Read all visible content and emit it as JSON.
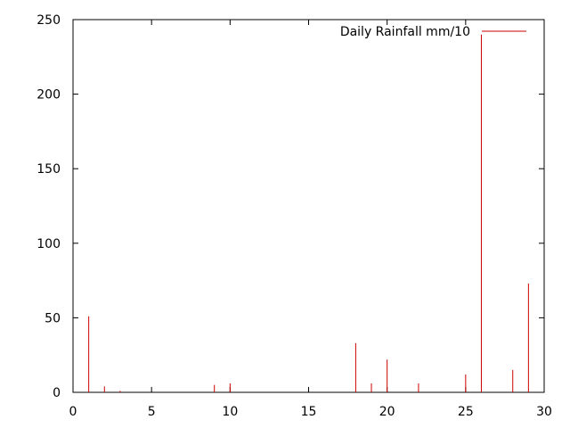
{
  "chart_data": {
    "type": "bar",
    "title": "",
    "xlabel": "",
    "ylabel": "",
    "xlim": [
      0,
      30
    ],
    "ylim": [
      0,
      250
    ],
    "xticks": [
      0,
      5,
      10,
      15,
      20,
      25,
      30
    ],
    "yticks": [
      0,
      50,
      100,
      150,
      200,
      250
    ],
    "grid": false,
    "legend_position": "top-right",
    "series": [
      {
        "name": "Daily Rainfall mm/10",
        "color": "#cc0000",
        "style": "impulses",
        "points": [
          {
            "x": 1,
            "y": 51
          },
          {
            "x": 2,
            "y": 4
          },
          {
            "x": 3,
            "y": 1
          },
          {
            "x": 9,
            "y": 5
          },
          {
            "x": 10,
            "y": 6
          },
          {
            "x": 18,
            "y": 33
          },
          {
            "x": 19,
            "y": 6
          },
          {
            "x": 20,
            "y": 22
          },
          {
            "x": 22,
            "y": 6
          },
          {
            "x": 25,
            "y": 12
          },
          {
            "x": 26,
            "y": 240
          },
          {
            "x": 28,
            "y": 15
          },
          {
            "x": 29,
            "y": 73
          }
        ]
      }
    ]
  }
}
